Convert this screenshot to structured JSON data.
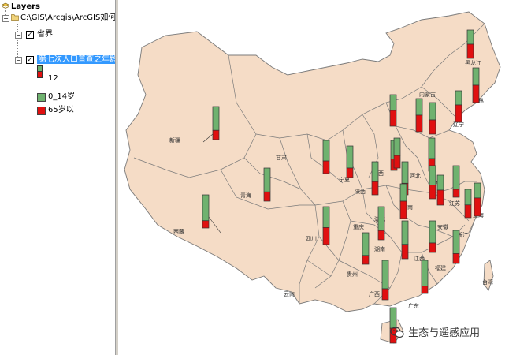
{
  "toc": {
    "root_label": "Layers",
    "folder_label": "C:\\GIS\\Arcgis\\ArcGIS如何",
    "layer1_label": "省界",
    "layer2_label": "第七次人口普查之年龄",
    "size_value": "12",
    "legend": [
      {
        "label": "0_14岁",
        "color": "#6fb26f"
      },
      {
        "label": "65岁以",
        "color": "#e01010"
      }
    ]
  },
  "map": {
    "land_color": "#f5dcc6",
    "border_color": "#7a7a7a",
    "labels": [
      "新疆",
      "西藏",
      "青海",
      "甘肃",
      "四川",
      "宁夏",
      "陕西",
      "山西",
      "内蒙古",
      "黑龙江",
      "吉林",
      "辽宁",
      "河北",
      "山东",
      "河南",
      "湖北",
      "重庆",
      "贵州",
      "云南",
      "广西",
      "湖南",
      "江西",
      "福建",
      "广东",
      "安徽",
      "江苏",
      "浙江",
      "上海",
      "台湾"
    ],
    "bars": [
      {
        "name": "xinjiang",
        "young": 0.72,
        "old": 0.28
      },
      {
        "name": "xizang",
        "young": 0.78,
        "old": 0.22
      },
      {
        "name": "qinghai",
        "young": 0.72,
        "old": 0.28
      },
      {
        "name": "gansu",
        "young": 0.62,
        "old": 0.38
      },
      {
        "name": "sichuan",
        "young": 0.55,
        "old": 0.45
      },
      {
        "name": "ningxia",
        "young": 0.7,
        "old": 0.3
      },
      {
        "name": "shaanxi",
        "young": 0.6,
        "old": 0.4
      },
      {
        "name": "shanxi",
        "young": 0.62,
        "old": 0.38
      },
      {
        "name": "neimenggu",
        "young": 0.5,
        "old": 0.5
      },
      {
        "name": "heilongjiang",
        "young": 0.5,
        "old": 0.5
      },
      {
        "name": "jilin",
        "young": 0.5,
        "old": 0.5
      },
      {
        "name": "liaoning",
        "young": 0.45,
        "old": 0.55
      },
      {
        "name": "beijing",
        "young": 0.5,
        "old": 0.5
      },
      {
        "name": "tianjin",
        "young": 0.55,
        "old": 0.45
      },
      {
        "name": "hebei",
        "young": 0.62,
        "old": 0.38
      },
      {
        "name": "shandong",
        "young": 0.58,
        "old": 0.42
      },
      {
        "name": "henan",
        "young": 0.65,
        "old": 0.35
      },
      {
        "name": "hubei",
        "young": 0.58,
        "old": 0.42
      },
      {
        "name": "chongqing",
        "young": 0.5,
        "old": 0.5
      },
      {
        "name": "guizhou",
        "young": 0.72,
        "old": 0.28
      },
      {
        "name": "yunnan",
        "young": 0.72,
        "old": 0.28
      },
      {
        "name": "guangxi",
        "young": 0.72,
        "old": 0.28
      },
      {
        "name": "hunan",
        "young": 0.62,
        "old": 0.38
      },
      {
        "name": "jiangxi",
        "young": 0.7,
        "old": 0.3
      },
      {
        "name": "fujian",
        "young": 0.7,
        "old": 0.3
      },
      {
        "name": "guangdong",
        "young": 0.78,
        "old": 0.22
      },
      {
        "name": "anhui",
        "young": 0.58,
        "old": 0.42
      },
      {
        "name": "jiangsu",
        "young": 0.5,
        "old": 0.5
      },
      {
        "name": "zhejiang",
        "young": 0.55,
        "old": 0.45
      },
      {
        "name": "shanghai",
        "young": 0.45,
        "old": 0.55
      },
      {
        "name": "hainan",
        "young": 0.75,
        "old": 0.25
      }
    ]
  },
  "watermark": {
    "text": "生态与遥感应用",
    "icon": "wechat-icon"
  }
}
